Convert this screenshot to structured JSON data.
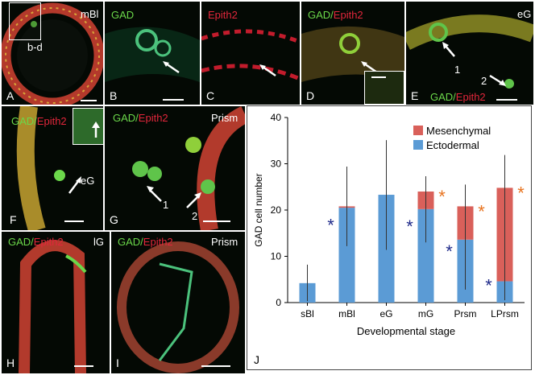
{
  "panels": {
    "A": {
      "letter": "A",
      "stage": "mBl",
      "inset": "b-d"
    },
    "B": {
      "letter": "B",
      "stain": "GAD"
    },
    "C": {
      "letter": "C",
      "stain": "Epith2"
    },
    "D": {
      "letter": "D",
      "stain_green": "GAD",
      "slash": "/",
      "stain_red": "Epith2"
    },
    "E": {
      "letter": "E",
      "stage": "eG",
      "stain_green": "GAD",
      "slash": "/",
      "stain_red": "Epith2",
      "num1": "1",
      "num2": "2"
    },
    "F": {
      "letter": "F",
      "stain_green": "GAD",
      "slash": "/",
      "stain_red": "Epith2",
      "stage": "eG"
    },
    "G": {
      "letter": "G",
      "stain_green": "GAD",
      "slash": "/",
      "stain_red": "Epith2",
      "stage": "Prism",
      "num1": "1",
      "num2": "2"
    },
    "H": {
      "letter": "H",
      "stain_green": "GAD",
      "slash": "/",
      "stain_red": "Epith2",
      "stage": "lG"
    },
    "I": {
      "letter": "I",
      "stain_green": "GAD",
      "slash": "/",
      "stain_red": "Epith2",
      "stage": "Prism"
    },
    "J": {
      "letter": "J"
    }
  },
  "colors": {
    "gad_green": "#6bd84a",
    "epith_red": "#e2263b",
    "ectodermal": "#5b9bd5",
    "mesenchymal": "#d9605a",
    "asterisk_blue": "#1f2a8a",
    "asterisk_orange": "#e8731e"
  },
  "chart_data": {
    "type": "bar",
    "stacked": true,
    "categories": [
      "sBl",
      "mBl",
      "eG",
      "mG",
      "Prsm",
      "LPrsm"
    ],
    "series": [
      {
        "name": "Ectodermal",
        "values": [
          4.2,
          20.5,
          23.3,
          20.2,
          13.6,
          4.6
        ]
      },
      {
        "name": "Mesenchymal",
        "values": [
          0,
          0.3,
          0,
          3.8,
          7.2,
          20.2
        ]
      }
    ],
    "error_bars": [
      [
        0.3,
        8.2
      ],
      [
        12.2,
        29.4
      ],
      [
        11.4,
        35.1
      ],
      [
        13.0,
        27.3
      ],
      [
        2.8,
        25.5
      ],
      [
        0.5,
        31.9
      ]
    ],
    "asterisks": {
      "blue": [
        "mBl",
        "mG",
        "Prsm",
        "LPrsm"
      ],
      "orange": [
        "mG",
        "Prsm",
        "LPrsm"
      ],
      "symbol": "*"
    },
    "xlabel": "Developmental stage",
    "ylabel": "GAD cell number",
    "ylim": [
      0,
      40
    ],
    "yticks": [
      "0",
      "10",
      "20",
      "30",
      "40"
    ],
    "legend_position": "top-right"
  }
}
